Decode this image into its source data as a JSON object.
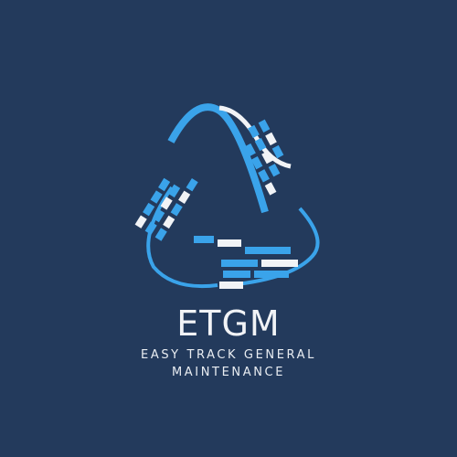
{
  "logo": {
    "brand_name": "ETGM",
    "tagline_line1": "EASY TRACK GENERAL",
    "tagline_line2": "MAINTENANCE",
    "icon": "track-triangle-logo-icon"
  },
  "colors": {
    "background": "#233a5c",
    "accent_blue": "#3aa3ea",
    "white": "#f1f3f6"
  }
}
